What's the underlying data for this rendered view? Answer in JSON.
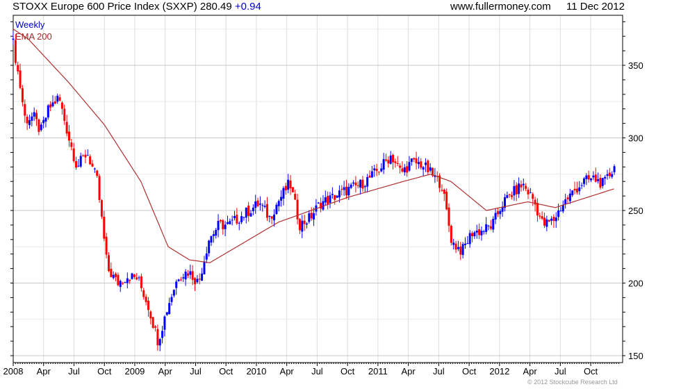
{
  "header": {
    "title": "STOXX Europe 600 Price Index (SXXP) 280.49",
    "change": "+0.94",
    "site": "www.fullermoney.com",
    "date": "11 Dec 2012"
  },
  "footer": {
    "copyright": "© 2012 Stockcube Research Ltd"
  },
  "chart_data": {
    "type": "candlestick",
    "title": "STOXX Europe 600 Price Index (SXXP)",
    "period": "Weekly",
    "legend": [
      "Weekly",
      "EMA 200"
    ],
    "legend_placement": "top-left",
    "colors": {
      "up": "#0000ff",
      "down": "#ff0000",
      "ema": "#b03030",
      "grid": "#dcdcdc"
    },
    "ylim": [
      146,
      385
    ],
    "yticks": [
      150,
      200,
      250,
      300,
      350
    ],
    "xticks": [
      "2008",
      "Apr",
      "Jul",
      "Oct",
      "2009",
      "Apr",
      "Jul",
      "Oct",
      "2010",
      "Apr",
      "Jul",
      "Oct",
      "2011",
      "Apr",
      "Jul",
      "Oct",
      "2012",
      "Apr",
      "Jul",
      "Oct"
    ],
    "x_unit": "months since Jan 2008",
    "close_approx": [
      [
        0,
        365
      ],
      [
        0.7,
        335
      ],
      [
        1.2,
        312
      ],
      [
        2,
        315
      ],
      [
        2.7,
        304
      ],
      [
        3.5,
        320
      ],
      [
        4.5,
        328
      ],
      [
        5.5,
        300
      ],
      [
        6.3,
        280
      ],
      [
        7.3,
        290
      ],
      [
        8.3,
        270
      ],
      [
        9.3,
        210
      ],
      [
        10.3,
        200
      ],
      [
        11.3,
        205
      ],
      [
        12.3,
        203
      ],
      [
        13.3,
        185
      ],
      [
        14.3,
        160
      ],
      [
        15.3,
        185
      ],
      [
        16.3,
        205
      ],
      [
        17.3,
        208
      ],
      [
        18.3,
        200
      ],
      [
        19.3,
        230
      ],
      [
        20.3,
        240
      ],
      [
        21.3,
        240
      ],
      [
        22.3,
        245
      ],
      [
        23.3,
        250
      ],
      [
        24.3,
        255
      ],
      [
        25.3,
        245
      ],
      [
        26.3,
        258
      ],
      [
        27.3,
        269
      ],
      [
        28.3,
        240
      ],
      [
        29.3,
        245
      ],
      [
        30.3,
        255
      ],
      [
        31.3,
        258
      ],
      [
        32.3,
        262
      ],
      [
        33.3,
        265
      ],
      [
        34.3,
        268
      ],
      [
        35.3,
        273
      ],
      [
        36.3,
        280
      ],
      [
        37.3,
        288
      ],
      [
        38.3,
        276
      ],
      [
        39.3,
        283
      ],
      [
        40.3,
        282
      ],
      [
        41.3,
        275
      ],
      [
        42.3,
        268
      ],
      [
        43.3,
        228
      ],
      [
        44.3,
        222
      ],
      [
        45.3,
        235
      ],
      [
        46.3,
        236
      ],
      [
        47.3,
        240
      ],
      [
        48.3,
        255
      ],
      [
        49.3,
        262
      ],
      [
        50.3,
        268
      ],
      [
        51.3,
        258
      ],
      [
        52.3,
        240
      ],
      [
        53.3,
        243
      ],
      [
        54.3,
        255
      ],
      [
        55.3,
        263
      ],
      [
        56.3,
        270
      ],
      [
        57.3,
        272
      ],
      [
        58.3,
        268
      ],
      [
        59.35,
        280.49
      ]
    ],
    "ema_200": [
      [
        0,
        375
      ],
      [
        1.5,
        368
      ],
      [
        5.5,
        338
      ],
      [
        9,
        309
      ],
      [
        12.6,
        270
      ],
      [
        15.3,
        225
      ],
      [
        17.4,
        216
      ],
      [
        19.4,
        214
      ],
      [
        26.2,
        242
      ],
      [
        33,
        259
      ],
      [
        38.5,
        270
      ],
      [
        41.2,
        275
      ],
      [
        43.2,
        270
      ],
      [
        46.7,
        250
      ],
      [
        50.8,
        256
      ],
      [
        53.5,
        252
      ],
      [
        59.35,
        265
      ]
    ]
  }
}
